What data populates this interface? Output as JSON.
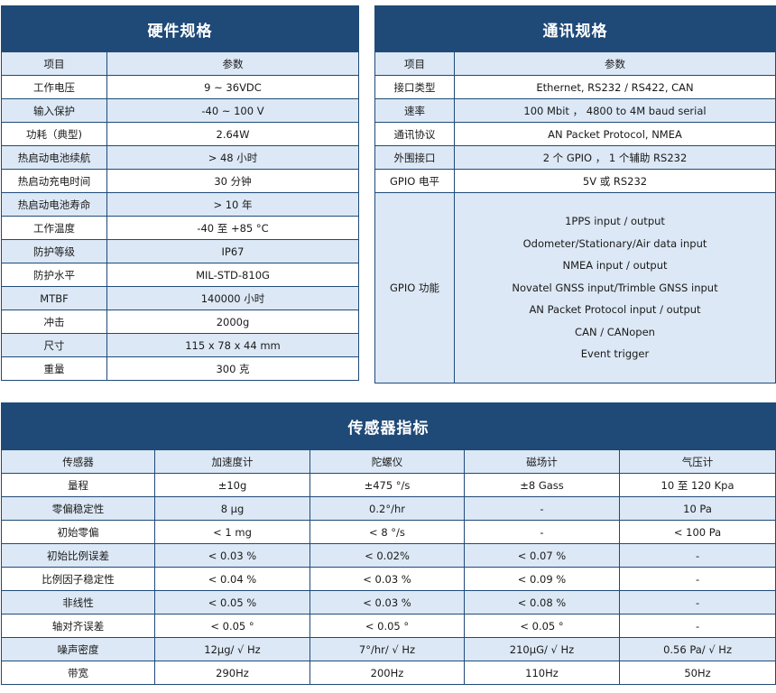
{
  "hardware": {
    "title": "硬件规格",
    "col_item": "项目",
    "col_param": "参数",
    "rows": [
      {
        "item": "工作电压",
        "value": "9 ~ 36VDC"
      },
      {
        "item": "输入保护",
        "value": "-40 ~ 100 V"
      },
      {
        "item": "功耗（典型)",
        "value": "2.64W"
      },
      {
        "item": "热启动电池续航",
        "value": "> 48 小时"
      },
      {
        "item": "热启动充电时间",
        "value": "30 分钟"
      },
      {
        "item": "热启动电池寿命",
        "value": "> 10 年"
      },
      {
        "item": "工作温度",
        "value": "-40  至  +85  °C"
      },
      {
        "item": "防护等级",
        "value": "IP67"
      },
      {
        "item": "防护水平",
        "value": "MIL-STD-810G"
      },
      {
        "item": "MTBF",
        "value": "140000 小时"
      },
      {
        "item": "冲击",
        "value": "2000g"
      },
      {
        "item": "尺寸",
        "value": "115 x 78 x 44 mm"
      },
      {
        "item": "重量",
        "value": "300 克"
      }
    ]
  },
  "communication": {
    "title": "通讯规格",
    "col_item": "项目",
    "col_param": "参数",
    "rows": [
      {
        "item": "接口类型",
        "value": "Ethernet, RS232 / RS422, CAN"
      },
      {
        "item": "速率",
        "value": "100 Mbit ，  4800 to 4M baud serial"
      },
      {
        "item": "通讯协议",
        "value": "AN Packet Protocol,  NMEA"
      },
      {
        "item": "外围接口",
        "value": "2 个 GPIO ， 1 个辅助 RS232"
      },
      {
        "item": "GPIO 电平",
        "value": "5V 或 RS232"
      }
    ],
    "gpio_function": {
      "item": "GPIO 功能",
      "values": [
        "1PPS input / output",
        "Odometer/Stationary/Air data input",
        "NMEA input / output",
        "Novatel GNSS input/Trimble GNSS input",
        "AN Packet Protocol input / output",
        "CAN / CANopen",
        "Event trigger"
      ]
    }
  },
  "sensors": {
    "title": "传感器指标",
    "headers": [
      "传感器",
      "加速度计",
      "陀螺仪",
      "磁场计",
      "气压计"
    ],
    "rows": [
      [
        "量程",
        "±10g",
        "±475  °/s",
        "±8 Gass",
        "10  至  120 Kpa"
      ],
      [
        "零偏稳定性",
        "8 μg",
        "0.2°/hr",
        "-",
        "10 Pa"
      ],
      [
        "初始零偏",
        "< 1 mg",
        "< 8  °/s",
        "-",
        "< 100 Pa"
      ],
      [
        "初始比例误差",
        "< 0.03 %",
        "< 0.02%",
        "< 0.07 %",
        "-"
      ],
      [
        "比例因子稳定性",
        "< 0.04 %",
        "< 0.03 %",
        "< 0.09 %",
        "-"
      ],
      [
        "非线性",
        "< 0.05 %",
        "< 0.03 %",
        "< 0.08 %",
        "-"
      ],
      [
        "轴对齐误差",
        "< 0.05  °",
        "< 0.05  °",
        "< 0.05  °",
        "-"
      ],
      [
        "噪声密度",
        "12μg/ √ Hz",
        "7°/hr/ √ Hz",
        "210μG/ √ Hz",
        "0.56 Pa/ √ Hz"
      ],
      [
        "带宽",
        "290Hz",
        "200Hz",
        "110Hz",
        "50Hz"
      ]
    ]
  }
}
